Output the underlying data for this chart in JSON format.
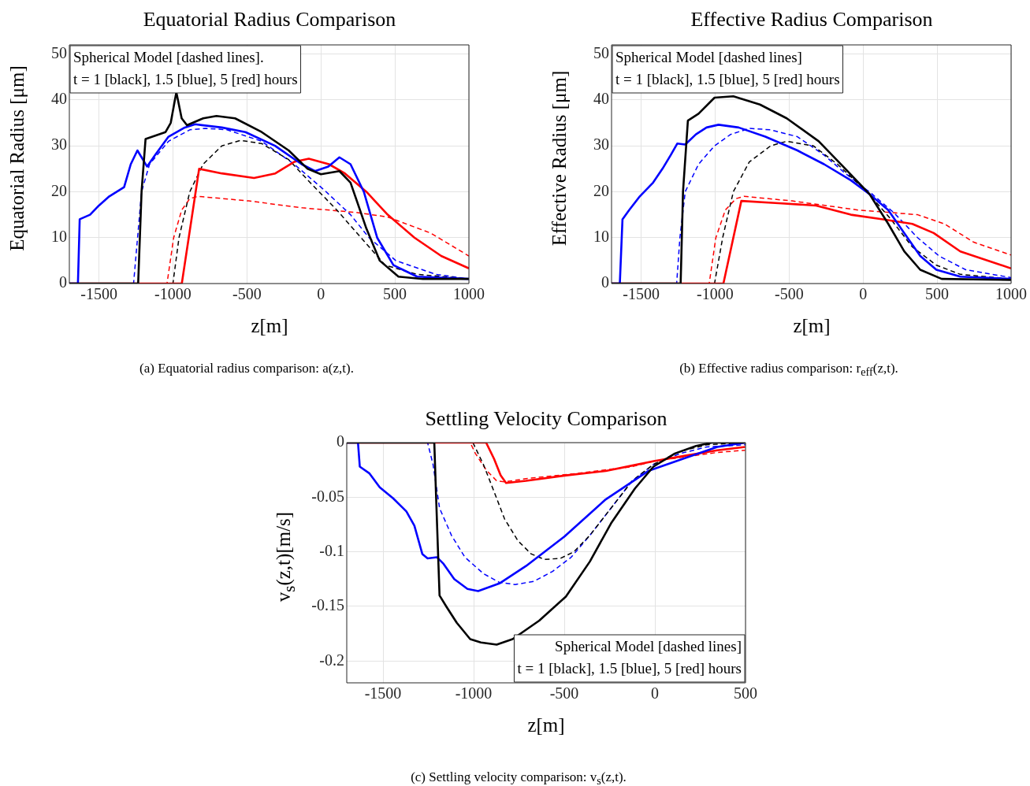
{
  "chart_data": [
    {
      "type": "line",
      "title": "Equatorial Radius Comparison",
      "xlabel": "z[m]",
      "ylabel": "Equatorial Radius [μm]",
      "xlim": [
        -1700,
        1000
      ],
      "xticks": [
        -1500,
        -1000,
        -500,
        0,
        500,
        1000
      ],
      "ylim": [
        0,
        52
      ],
      "yticks": [
        0,
        10,
        20,
        30,
        40,
        50
      ],
      "grid": true,
      "marker": "none",
      "annotations": [
        "Spherical Model [dashed lines].",
        "t = 1 [black], 1.5 [blue], 5 [red] hours",
        "(a) Equatorial radius comparison: a(z,t)."
      ],
      "series": [
        {
          "color": "#000000",
          "line_style": "solid",
          "x": [
            -1700,
            -1235,
            -1212,
            -1185,
            -1050,
            -1015,
            -977,
            -941,
            -905,
            -796,
            -706,
            -580,
            -400,
            -218,
            -90,
            0,
            125,
            200,
            307,
            397,
            524,
            690,
            1000
          ],
          "values": [
            0,
            0,
            20,
            31.5,
            33,
            35,
            41.7,
            36,
            34.5,
            36,
            36.5,
            36,
            33,
            29,
            25,
            23.8,
            24.5,
            22,
            12,
            5,
            1.5,
            1,
            1
          ]
        },
        {
          "color": "#0000ff",
          "line_style": "solid",
          "x": [
            -1700,
            -1642,
            -1630,
            -1560,
            -1500,
            -1430,
            -1330,
            -1285,
            -1240,
            -1175,
            -1120,
            -1030,
            -920,
            -850,
            -670,
            -510,
            -310,
            -130,
            -40,
            50,
            125,
            200,
            290,
            380,
            490,
            650,
            1000
          ],
          "values": [
            0,
            0,
            14,
            15,
            17,
            19,
            21,
            26,
            29,
            25.5,
            28,
            32,
            34,
            34.7,
            34,
            33,
            30,
            26,
            24.5,
            25.5,
            27.5,
            26,
            20,
            10,
            4,
            1.5,
            1
          ]
        },
        {
          "color": "#ff0000",
          "line_style": "solid",
          "x": [
            -1700,
            -940,
            -823,
            -670,
            -452,
            -308,
            -181,
            -82,
            54,
            162,
            307,
            451,
            632,
            813,
            1000
          ],
          "values": [
            0,
            0,
            25,
            24,
            23,
            24,
            26.5,
            27.2,
            26,
            24,
            20,
            15,
            10,
            6,
            3.3
          ]
        },
        {
          "color": "#000000",
          "line_style": "dashed",
          "x": [
            -1700,
            -1000,
            -959,
            -886,
            -796,
            -670,
            -543,
            -400,
            -218,
            -73,
            108,
            271,
            434,
            650,
            1000
          ],
          "values": [
            0,
            0,
            10,
            20,
            26,
            30,
            31.2,
            30.5,
            27,
            22,
            16,
            10,
            4,
            2,
            1
          ]
        },
        {
          "color": "#0000ff",
          "line_style": "dashed",
          "x": [
            -1700,
            -1266,
            -1212,
            -1158,
            -1030,
            -886,
            -778,
            -635,
            -400,
            -181,
            18,
            200,
            325,
            506,
            777,
            1000
          ],
          "values": [
            0,
            0,
            20,
            26,
            31,
            33.5,
            33.8,
            33.5,
            31,
            26,
            20.5,
            15,
            10,
            5,
            2,
            1
          ]
        },
        {
          "color": "#ff0000",
          "line_style": "dashed",
          "x": [
            -1700,
            -1040,
            -995,
            -941,
            -886,
            -832,
            -488,
            -127,
            235,
            451,
            741,
            1000
          ],
          "values": [
            0,
            0,
            10,
            16,
            18.5,
            19,
            18,
            16.5,
            15.5,
            14.5,
            11,
            6
          ]
        }
      ]
    },
    {
      "type": "line",
      "title": "Effective Radius Comparison",
      "xlabel": "z[m]",
      "ylabel": "Effective Radius [μm]",
      "xlim": [
        -1700,
        1000
      ],
      "xticks": [
        -1500,
        -1000,
        -500,
        0,
        500,
        1000
      ],
      "ylim": [
        0,
        52
      ],
      "yticks": [
        0,
        10,
        20,
        30,
        40,
        50
      ],
      "grid": true,
      "marker": "none",
      "annotations": [
        "Spherical Model [dashed lines]",
        "t = 1 [black], 1.5 [blue], 5 [red] hours",
        "(b) Effective radius comparison: r$_{eff}$(z,t)."
      ],
      "series": [
        {
          "color": "#000000",
          "line_style": "solid",
          "x": [
            -1700,
            -1233,
            -1217,
            -1184,
            -1112,
            -1004,
            -877,
            -697,
            -516,
            -300,
            -120,
            43,
            170,
            278,
            386,
            531,
            1000
          ],
          "values": [
            0,
            0,
            20,
            35.5,
            37,
            40.5,
            40.8,
            39,
            36,
            31,
            25,
            19.5,
            13,
            7,
            3,
            1,
            0.8
          ]
        },
        {
          "color": "#0000ff",
          "line_style": "solid",
          "x": [
            -1700,
            -1644,
            -1626,
            -1581,
            -1509,
            -1419,
            -1356,
            -1300,
            -1256,
            -1202,
            -1130,
            -1058,
            -977,
            -841,
            -661,
            -444,
            -264,
            -83,
            43,
            170,
            278,
            386,
            495,
            657,
            1000
          ],
          "values": [
            0,
            0,
            14,
            16,
            19,
            22,
            25,
            28,
            30.5,
            30.3,
            32.5,
            34,
            34.6,
            34,
            32,
            29,
            26,
            22.5,
            19.5,
            16,
            11,
            6,
            3,
            1.5,
            1
          ]
        },
        {
          "color": "#ff0000",
          "line_style": "solid",
          "x": [
            -1700,
            -944,
            -823,
            -571,
            -318,
            -83,
            134,
            332,
            477,
            657,
            1000
          ],
          "values": [
            0,
            0,
            18,
            17.5,
            17,
            15,
            14,
            13,
            11,
            7,
            3.3
          ]
        },
        {
          "color": "#000000",
          "line_style": "dashed",
          "x": [
            -1700,
            -1004,
            -949,
            -877,
            -769,
            -625,
            -516,
            -336,
            -173,
            25,
            188,
            332,
            495,
            657,
            1000
          ],
          "values": [
            0,
            0,
            10,
            20,
            26.5,
            30,
            31,
            30,
            26,
            20,
            14,
            8,
            4,
            2,
            1
          ]
        },
        {
          "color": "#0000ff",
          "line_style": "dashed",
          "x": [
            -1700,
            -1260,
            -1238,
            -1202,
            -1112,
            -1004,
            -895,
            -769,
            -625,
            -444,
            -264,
            -120,
            61,
            206,
            368,
            513,
            694,
            1000
          ],
          "values": [
            0,
            0,
            10,
            20,
            26,
            30,
            32.5,
            33.8,
            33.5,
            32,
            28,
            24,
            19.5,
            15.5,
            10,
            6,
            3,
            1.3
          ]
        },
        {
          "color": "#ff0000",
          "line_style": "dashed",
          "x": [
            -1700,
            -1040,
            -995,
            -931,
            -859,
            -805,
            -480,
            -29,
            368,
            549,
            748,
            1000
          ],
          "values": [
            0,
            0,
            10,
            16,
            18.5,
            19,
            18,
            16,
            15,
            13,
            9,
            6.2
          ]
        }
      ]
    },
    {
      "type": "line",
      "title": "Settling Velocity Comparison",
      "xlabel": "z[m]",
      "ylabel": "v$_{s}$(z,t)[m/s]",
      "xlim": [
        -1700,
        500
      ],
      "xticks": [
        -1500,
        -1000,
        -500,
        0,
        500
      ],
      "ylim": [
        -0.22,
        0
      ],
      "yticks": [
        -0.2,
        -0.15,
        -0.1,
        -0.05,
        0
      ],
      "grid": true,
      "marker": "none",
      "annotations": [
        "Spherical Model [dashed lines]",
        "t = 1 [black], 1.5 [blue], 5 [red] hours",
        "(c) Settling velocity comparison: v$_{s}$(z,t)."
      ],
      "series": [
        {
          "color": "#000000",
          "line_style": "solid",
          "x": [
            -1700,
            -1217,
            -1207,
            -1188,
            -1151,
            -1093,
            -1019,
            -960,
            -873,
            -785,
            -638,
            -491,
            -359,
            -242,
            -110,
            -8,
            110,
            227,
            315,
            500
          ],
          "values": [
            0,
            0,
            -0.05,
            -0.14,
            -0.15,
            -0.165,
            -0.18,
            -0.183,
            -0.185,
            -0.18,
            -0.163,
            -0.141,
            -0.109,
            -0.074,
            -0.042,
            -0.022,
            -0.01,
            -0.003,
            0,
            0
          ]
        },
        {
          "color": "#0000ff",
          "line_style": "solid",
          "x": [
            -1700,
            -1638,
            -1628,
            -1576,
            -1518,
            -1444,
            -1371,
            -1327,
            -1283,
            -1254,
            -1202,
            -1166,
            -1107,
            -1034,
            -975,
            -858,
            -711,
            -499,
            -271,
            -37,
            168,
            344,
            498
          ],
          "values": [
            0,
            0,
            -0.022,
            -0.028,
            -0.041,
            -0.051,
            -0.063,
            -0.076,
            -0.102,
            -0.106,
            -0.105,
            -0.111,
            -0.125,
            -0.134,
            -0.136,
            -0.129,
            -0.113,
            -0.086,
            -0.052,
            -0.026,
            -0.014,
            -0.004,
            0
          ]
        },
        {
          "color": "#ff0000",
          "line_style": "solid",
          "x": [
            -1700,
            -931,
            -887,
            -851,
            -821,
            -711,
            -491,
            -271,
            -125,
            -6,
            168,
            344,
            498
          ],
          "values": [
            0,
            0,
            -0.015,
            -0.03,
            -0.037,
            -0.035,
            -0.03,
            -0.026,
            -0.021,
            -0.017,
            -0.012,
            -0.007,
            -0.004
          ]
        },
        {
          "color": "#000000",
          "line_style": "dashed",
          "x": [
            -1700,
            -1004,
            -946,
            -887,
            -829,
            -755,
            -682,
            -609,
            -521,
            -447,
            -359,
            -242,
            -125,
            -8,
            139,
            286,
            500
          ],
          "values": [
            0,
            0,
            -0.02,
            -0.045,
            -0.07,
            -0.09,
            -0.102,
            -0.107,
            -0.106,
            -0.1,
            -0.085,
            -0.06,
            -0.035,
            -0.02,
            -0.008,
            -0.002,
            0
          ]
        },
        {
          "color": "#0000ff",
          "line_style": "dashed",
          "x": [
            -1700,
            -1254,
            -1224,
            -1188,
            -1122,
            -1048,
            -946,
            -858,
            -770,
            -667,
            -565,
            -462,
            -359,
            -242,
            -125,
            -8,
            139,
            286,
            500
          ],
          "values": [
            0,
            0,
            -0.02,
            -0.06,
            -0.085,
            -0.105,
            -0.12,
            -0.128,
            -0.13,
            -0.127,
            -0.118,
            -0.105,
            -0.085,
            -0.06,
            -0.035,
            -0.02,
            -0.01,
            -0.004,
            -0.002
          ]
        },
        {
          "color": "#ff0000",
          "line_style": "dashed",
          "x": [
            -1700,
            -1019,
            -990,
            -931,
            -873,
            -829,
            -711,
            -418,
            -125,
            -6,
            168,
            344,
            498
          ],
          "values": [
            0,
            0,
            -0.01,
            -0.025,
            -0.035,
            -0.036,
            -0.033,
            -0.028,
            -0.022,
            -0.017,
            -0.013,
            -0.009,
            -0.007
          ]
        }
      ]
    }
  ]
}
